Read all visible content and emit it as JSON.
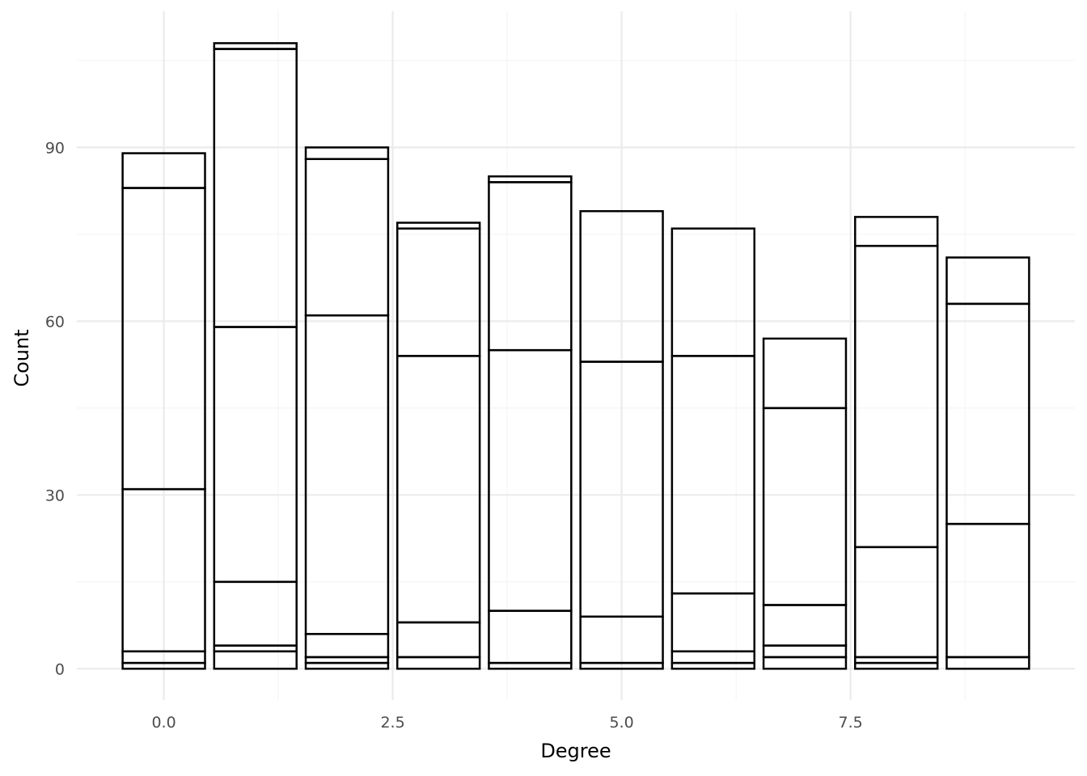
{
  "chart_data": {
    "type": "bar",
    "stacked": true,
    "title": "",
    "xlabel": "Degree",
    "ylabel": "Count",
    "xlim": [
      -0.95,
      9.95
    ],
    "ylim": [
      -5.4,
      113.5
    ],
    "x_ticks": [
      0.0,
      2.5,
      5.0,
      7.5
    ],
    "x_tick_labels": [
      "0.0",
      "2.5",
      "5.0",
      "7.5"
    ],
    "y_ticks": [
      0,
      30,
      60,
      90
    ],
    "y_tick_labels": [
      "0",
      "30",
      "60",
      "90"
    ],
    "bar_width": 0.9,
    "grid": true,
    "legend": "none",
    "bars": [
      {
        "x": 0,
        "boundaries": [
          0,
          1,
          3,
          31,
          83,
          89
        ]
      },
      {
        "x": 1,
        "boundaries": [
          0,
          3,
          4,
          15,
          59,
          107,
          108
        ]
      },
      {
        "x": 2,
        "boundaries": [
          0,
          1,
          2,
          6,
          61,
          88,
          90
        ]
      },
      {
        "x": 3,
        "boundaries": [
          0,
          2,
          8,
          54,
          76,
          77
        ]
      },
      {
        "x": 4,
        "boundaries": [
          0,
          1,
          10,
          55,
          84,
          85
        ]
      },
      {
        "x": 5,
        "boundaries": [
          0,
          1,
          9,
          53,
          79
        ]
      },
      {
        "x": 6,
        "boundaries": [
          0,
          1,
          3,
          13,
          54,
          76
        ]
      },
      {
        "x": 7,
        "boundaries": [
          0,
          2,
          4,
          11,
          45,
          57
        ]
      },
      {
        "x": 8,
        "boundaries": [
          0,
          1,
          2,
          21,
          73,
          78
        ]
      },
      {
        "x": 9,
        "boundaries": [
          0,
          2,
          25,
          63,
          71
        ]
      }
    ]
  }
}
